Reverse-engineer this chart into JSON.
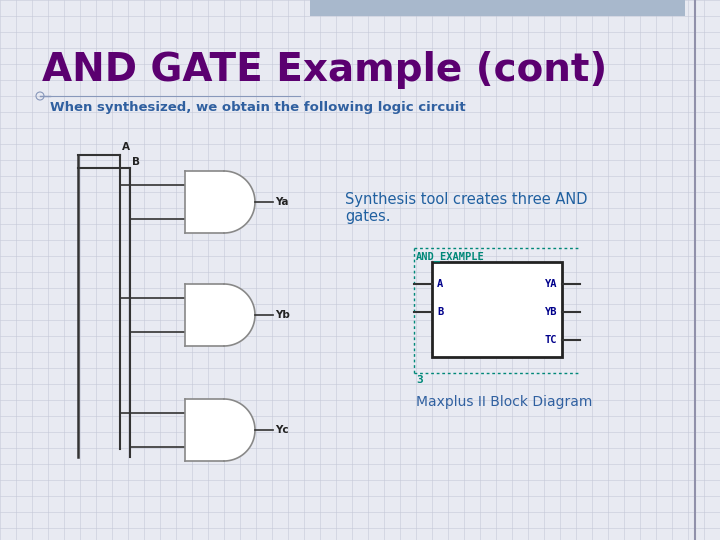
{
  "title": "AND GATE Example (cont)",
  "subtitle": "When synthesized, we obtain the following logic circuit",
  "title_color": "#5B0070",
  "subtitle_color": "#3060A0",
  "bg_color": "#E8EAF2",
  "grid_color": "#C5C8D8",
  "annotation_text": "Synthesis tool creates three AND\ngates.",
  "annotation_color": "#2060A0",
  "annotation_fontsize": 10.5,
  "block_label": "AND_EXAMPLE",
  "block_inputs": [
    "A",
    "B"
  ],
  "block_outputs": [
    "YA",
    "YB",
    "TC"
  ],
  "block_label_color": "#008878",
  "block_port_color": "#00008B",
  "maxplus_text": "Maxplus II Block Diagram",
  "maxplus_color": "#3060A0",
  "gate_color": "#888888",
  "wire_color": "#333333",
  "top_bar_color": "#A8B8CC",
  "right_line_color": "#9090AA"
}
